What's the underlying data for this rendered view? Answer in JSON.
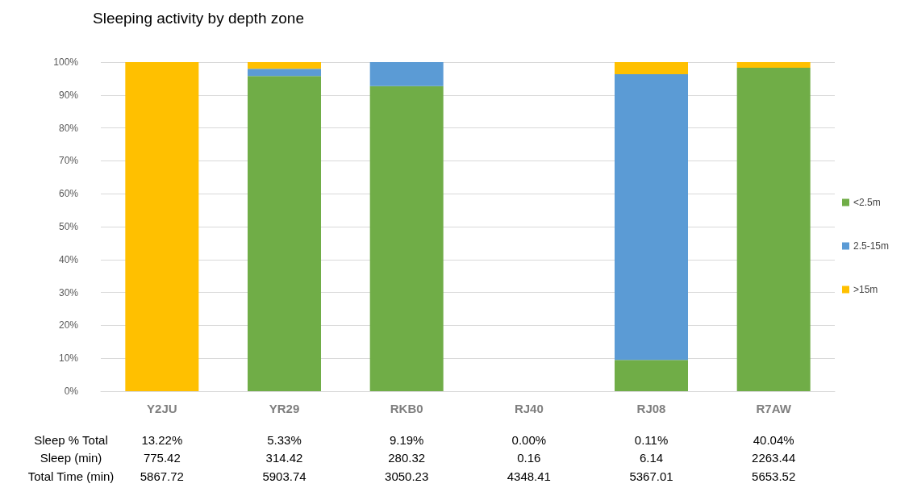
{
  "chart_data": {
    "type": "bar",
    "title": "Sleeping activity by depth zone",
    "stacked": true,
    "categories": [
      "Y2JU",
      "YR29",
      "RKB0",
      "RJ40",
      "RJ08",
      "R7AW"
    ],
    "series": [
      {
        "name": "<2.5m",
        "color": "#70ad47",
        "values": [
          0,
          95.8,
          92.7,
          0,
          9.5,
          98.3
        ]
      },
      {
        "name": "2.5-15m",
        "color": "#5b9bd5",
        "values": [
          0,
          2.2,
          7.3,
          0,
          86.8,
          0
        ]
      },
      {
        "name": ">15m",
        "color": "#ffc000",
        "values": [
          100,
          2,
          0,
          0,
          3.7,
          1.7
        ]
      }
    ],
    "ylim": [
      0,
      100
    ],
    "yticks": [
      {
        "value": 0,
        "label": "0%"
      },
      {
        "value": 10,
        "label": "10%"
      },
      {
        "value": 20,
        "label": "20%"
      },
      {
        "value": 30,
        "label": "30%"
      },
      {
        "value": 40,
        "label": "40%"
      },
      {
        "value": 50,
        "label": "50%"
      },
      {
        "value": 60,
        "label": "60%"
      },
      {
        "value": 70,
        "label": "70%"
      },
      {
        "value": 80,
        "label": "80%"
      },
      {
        "value": 90,
        "label": "90%"
      },
      {
        "value": 100,
        "label": "100%"
      }
    ],
    "grid": "y",
    "legend": "right",
    "annotations": [
      "Sleep % Total",
      "13.22%",
      "5.33%",
      "9.19%",
      "0.00%",
      "0.11%",
      "40.04%",
      "Sleep (min)",
      "775.42",
      "314.42",
      "280.32",
      "0.16",
      "6.14",
      "2263.44",
      "Total Time (min)",
      "5867.72",
      "5903.74",
      "3050.23",
      "4348.41",
      "5367.01",
      "5653.52"
    ]
  }
}
